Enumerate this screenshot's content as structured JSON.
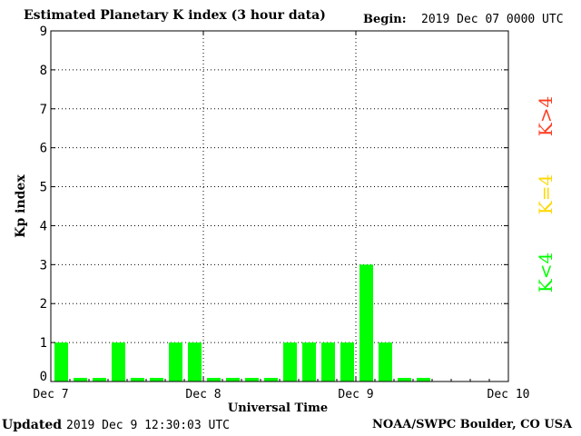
{
  "header": {
    "title": "Estimated Planetary K index (3 hour data)",
    "begin_label": "Begin:",
    "begin_value": "2019 Dec 07 0000 UTC"
  },
  "footer": {
    "updated_label": "Updated",
    "updated_value": "2019 Dec  9 12:30:03 UTC",
    "source": "NOAA/SWPC Boulder, CO USA"
  },
  "chart_data": {
    "type": "bar",
    "title": "Estimated Planetary K index (3 hour data)",
    "xlabel": "Universal Time",
    "ylabel": "Kp index",
    "ylim": [
      0,
      9
    ],
    "yticks": [
      "0",
      "1",
      "2",
      "3",
      "4",
      "5",
      "6",
      "7",
      "8",
      "9"
    ],
    "xticks": [
      "Dec 7",
      "Dec 8",
      "Dec 9",
      "Dec 10"
    ],
    "grid": true,
    "slots_total": 24,
    "values": [
      1,
      0,
      0,
      1,
      0,
      0,
      1,
      1,
      0,
      0,
      0,
      0,
      1,
      1,
      1,
      1,
      3,
      1,
      0,
      0
    ],
    "bar_color": "#00ff00",
    "legend": [
      {
        "label": "K<4",
        "color": "#00ff00"
      },
      {
        "label": "K=4",
        "color": "#ffd700"
      },
      {
        "label": "K>4",
        "color": "#ff3b1f"
      }
    ],
    "legend_placement": "right"
  }
}
